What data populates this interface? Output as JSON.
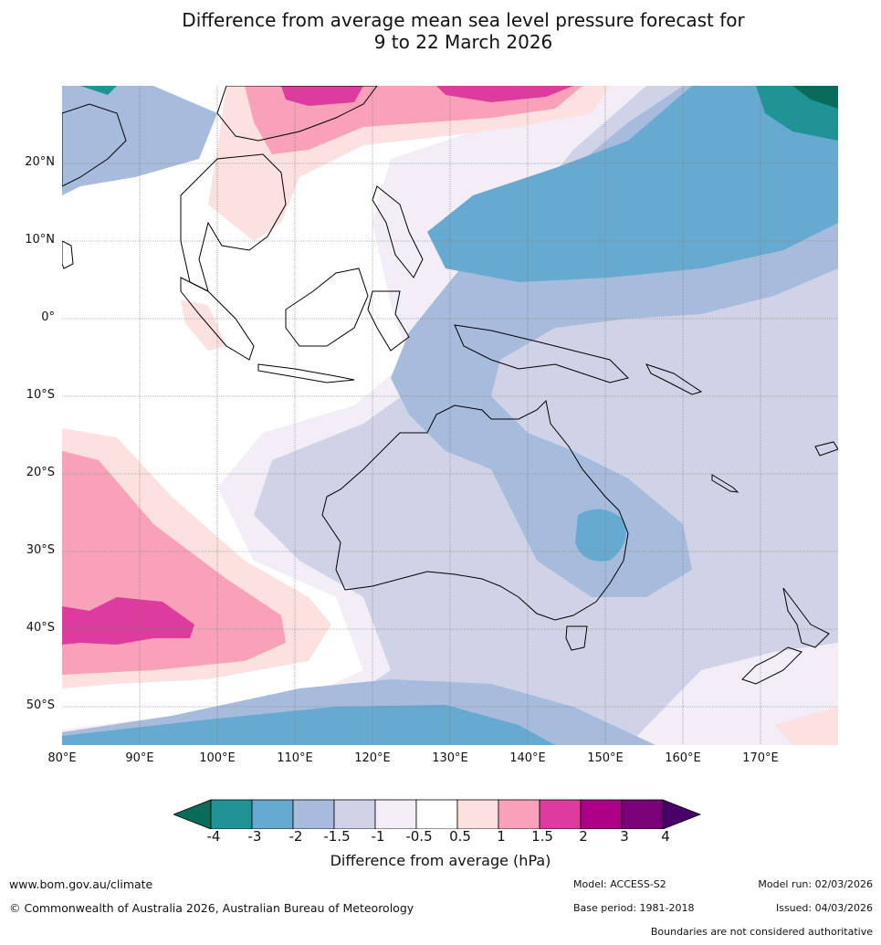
{
  "title": {
    "line1": "Difference from average mean sea level pressure forecast for",
    "line2": "9 to 22 March 2026"
  },
  "map": {
    "region": "Australia, Maritime Continent and Indian/Pacific Oceans",
    "lon_range": [
      80,
      180
    ],
    "lat_range": [
      -55,
      30
    ],
    "lat_labels": [
      "20°N",
      "10°N",
      "0°",
      "10°S",
      "20°S",
      "30°S",
      "40°S",
      "50°S"
    ],
    "lon_labels": [
      "80°E",
      "90°E",
      "100°E",
      "110°E",
      "120°E",
      "130°E",
      "140°E",
      "150°E",
      "160°E",
      "170°E"
    ]
  },
  "colorbar": {
    "tick_labels": [
      "-4",
      "-3",
      "-2",
      "-1.5",
      "-1",
      "-0.5",
      "0.5",
      "1",
      "1.5",
      "2",
      "3",
      "4"
    ],
    "colors": [
      "#0b6b5b",
      "#1f9396",
      "#67aad1",
      "#a7bcdc",
      "#d0d3e7",
      "#f2edf6",
      "#ffffff",
      "#fde0e0",
      "#f8a1b9",
      "#dd3b9d",
      "#ad0086",
      "#7a0177",
      "#4a006b"
    ],
    "label": "Difference from average (hPa)"
  },
  "footer": {
    "website": "www.bom.gov.au/climate",
    "copyright": "© Commonwealth of Australia 2026, Australian Bureau of Meteorology",
    "model": "Model: ACCESS-S2",
    "base_period": "Base period: 1981-2018",
    "model_run": "Model run: 02/03/2026",
    "issued": "Issued: 04/03/2026",
    "boundaries_note": "Boundaries are not considered authoritative"
  }
}
